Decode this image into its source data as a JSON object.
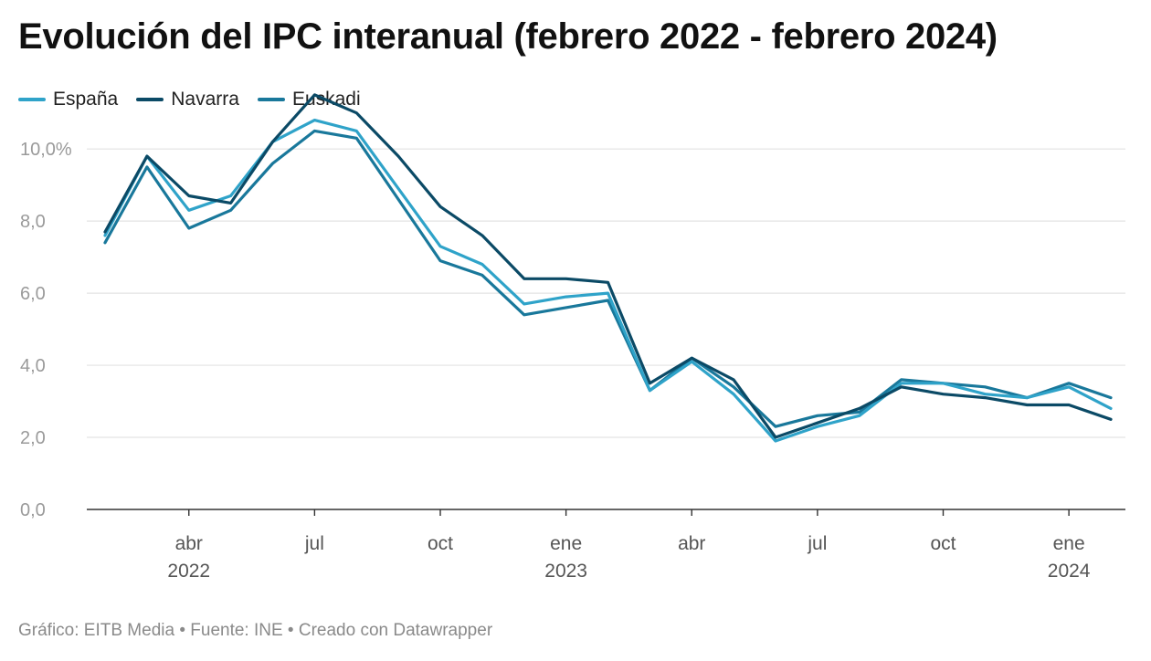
{
  "title": "Evolución del IPC interanual (febrero 2022 - febrero 2024)",
  "footer": "Gráfico: EITB Media • Fuente: INE • Creado con Datawrapper",
  "chart_data": {
    "type": "line",
    "title": "Evolución del IPC interanual (febrero 2022 - febrero 2024)",
    "x": [
      "2022-02",
      "2022-03",
      "2022-04",
      "2022-05",
      "2022-06",
      "2022-07",
      "2022-08",
      "2022-09",
      "2022-10",
      "2022-11",
      "2022-12",
      "2023-01",
      "2023-02",
      "2023-03",
      "2023-04",
      "2023-05",
      "2023-06",
      "2023-07",
      "2023-08",
      "2023-09",
      "2023-10",
      "2023-11",
      "2023-12",
      "2024-01",
      "2024-02"
    ],
    "series": [
      {
        "name": "España",
        "color": "#2fa3c9",
        "values": [
          7.6,
          9.8,
          8.3,
          8.7,
          10.2,
          10.8,
          10.5,
          8.9,
          7.3,
          6.8,
          5.7,
          5.9,
          6.0,
          3.3,
          4.1,
          3.2,
          1.9,
          2.3,
          2.6,
          3.5,
          3.5,
          3.2,
          3.1,
          3.4,
          2.8
        ]
      },
      {
        "name": "Navarra",
        "color": "#0b4a66",
        "values": [
          7.7,
          9.8,
          8.7,
          8.5,
          10.2,
          11.5,
          11.0,
          9.8,
          8.4,
          7.6,
          6.4,
          6.4,
          6.3,
          3.5,
          4.2,
          3.6,
          2.0,
          2.4,
          2.8,
          3.4,
          3.2,
          3.1,
          2.9,
          2.9,
          2.5
        ]
      },
      {
        "name": "Euskadi",
        "color": "#19789b",
        "values": [
          7.4,
          9.5,
          7.8,
          8.3,
          9.6,
          10.5,
          10.3,
          8.6,
          6.9,
          6.5,
          5.4,
          5.6,
          5.8,
          3.3,
          4.2,
          3.4,
          2.3,
          2.6,
          2.7,
          3.6,
          3.5,
          3.4,
          3.1,
          3.5,
          3.1
        ]
      }
    ],
    "ylim": [
      0,
      11.6
    ],
    "yticks": [
      {
        "value": 0,
        "label": "0,0"
      },
      {
        "value": 2,
        "label": "2,0"
      },
      {
        "value": 4,
        "label": "4,0"
      },
      {
        "value": 6,
        "label": "6,0"
      },
      {
        "value": 8,
        "label": "8,0"
      },
      {
        "value": 10,
        "label": "10,0%"
      }
    ],
    "xticks": [
      {
        "index": 2,
        "label": "abr",
        "sublabel": "2022"
      },
      {
        "index": 5,
        "label": "jul",
        "sublabel": ""
      },
      {
        "index": 8,
        "label": "oct",
        "sublabel": ""
      },
      {
        "index": 11,
        "label": "ene",
        "sublabel": "2023"
      },
      {
        "index": 14,
        "label": "abr",
        "sublabel": ""
      },
      {
        "index": 17,
        "label": "jul",
        "sublabel": ""
      },
      {
        "index": 20,
        "label": "oct",
        "sublabel": ""
      },
      {
        "index": 23,
        "label": "ene",
        "sublabel": "2024"
      }
    ],
    "grid": true,
    "legend": "top-left"
  }
}
